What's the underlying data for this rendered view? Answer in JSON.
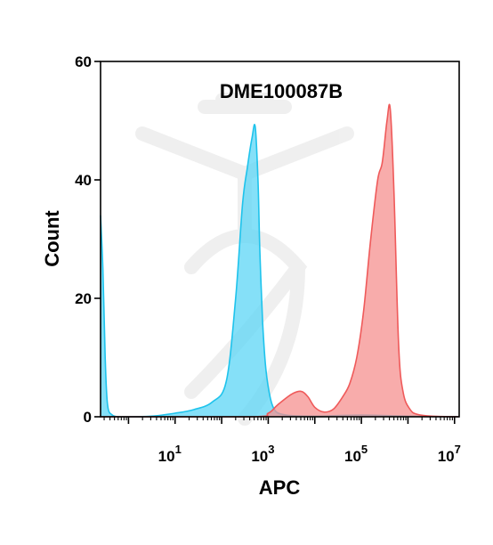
{
  "chart_data": {
    "type": "area",
    "title": "DME100087B",
    "xlabel": "APC",
    "ylabel": "Count",
    "xscale": "log",
    "xlim_log10": [
      -0.6,
      7.1
    ],
    "ylim": [
      0,
      60
    ],
    "x_ticks": [
      {
        "base": "10",
        "exp": "1",
        "log10": 1
      },
      {
        "base": "10",
        "exp": "3",
        "log10": 3
      },
      {
        "base": "10",
        "exp": "5",
        "log10": 5
      },
      {
        "base": "10",
        "exp": "7",
        "log10": 7
      }
    ],
    "y_ticks": [
      {
        "label": "0",
        "value": 0
      },
      {
        "label": "20",
        "value": 20
      },
      {
        "label": "40",
        "value": 40
      },
      {
        "label": "60",
        "value": 60
      }
    ],
    "grid": false,
    "legend": "none",
    "series": [
      {
        "fill": "#5cd6f5",
        "stroke": "#1ec3ec",
        "x_log10": [
          -0.6,
          -0.55,
          -0.5,
          -0.45,
          -0.35,
          -0.2,
          0,
          0.5,
          1.0,
          1.4,
          1.8,
          2.1,
          2.3,
          2.45,
          2.55,
          2.65,
          2.72,
          2.78,
          2.82,
          2.88,
          2.95,
          3.05,
          3.15,
          3.3,
          3.5,
          4.0,
          5.0,
          6.0,
          7.1
        ],
        "values": [
          34,
          25,
          10,
          2,
          0.3,
          0,
          0,
          0.1,
          0.6,
          1.2,
          2.5,
          6,
          20,
          36,
          42,
          47,
          49,
          40,
          28,
          16,
          8,
          3,
          1,
          0.4,
          0.2,
          0.1,
          0.3,
          0.1,
          0
        ]
      },
      {
        "fill": "#f5908f",
        "stroke": "#ef5a5a",
        "x_log10": [
          -0.6,
          2.6,
          3.0,
          3.2,
          3.5,
          3.7,
          3.85,
          4.0,
          4.2,
          4.4,
          4.6,
          4.75,
          4.9,
          5.05,
          5.2,
          5.35,
          5.45,
          5.55,
          5.62,
          5.7,
          5.8,
          5.9,
          6.05,
          6.2,
          6.5,
          7.1
        ],
        "values": [
          0,
          0,
          0.6,
          2,
          3.8,
          4.3,
          3.4,
          1.6,
          0.8,
          1.3,
          3.4,
          5.6,
          10,
          18,
          30,
          40,
          43,
          50,
          52,
          38,
          12,
          4,
          1.2,
          0.4,
          0.1,
          0
        ]
      }
    ]
  }
}
